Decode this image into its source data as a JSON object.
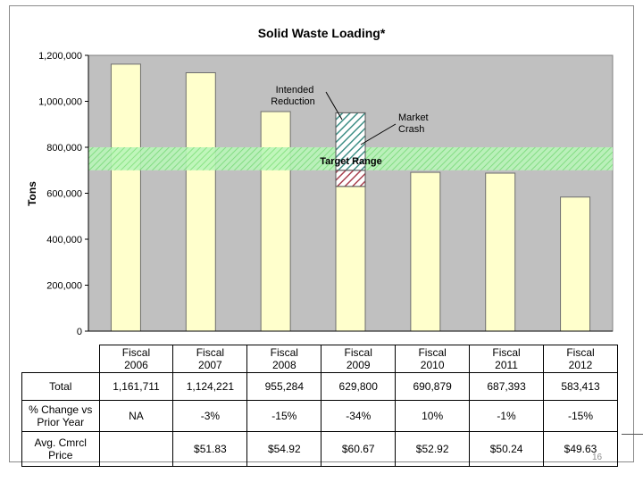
{
  "chart_data": {
    "type": "bar",
    "title": "Solid Waste Loading*",
    "ylabel": "Tons",
    "xlabel": "",
    "ylim": [
      0,
      1200000
    ],
    "yticks": [
      0,
      200000,
      400000,
      600000,
      800000,
      1000000,
      1200000
    ],
    "ytick_labels": [
      "0",
      "200,000",
      "400,000",
      "600,000",
      "800,000",
      "1,000,000",
      "1,200,000"
    ],
    "categories": [
      "Fiscal 2006",
      "Fiscal 2007",
      "Fiscal 2008",
      "Fiscal 2009",
      "Fiscal 2010",
      "Fiscal 2011",
      "Fiscal 2012"
    ],
    "values": [
      1161711,
      1124221,
      955284,
      629800,
      690879,
      687393,
      583413
    ],
    "stacked_overlays": [
      {
        "category": "Fiscal 2009",
        "label": "Intended Reduction",
        "from": 629800,
        "to": 700000,
        "pattern": "red-hatch"
      },
      {
        "category": "Fiscal 2009",
        "label": "Market Crash",
        "from": 700000,
        "to": 950000,
        "pattern": "teal-hatch"
      }
    ],
    "target_range": {
      "label": "Target Range",
      "from": 700000,
      "to": 800000
    },
    "annotations": [
      "Intended Reduction",
      "Market Crash",
      "Target Range"
    ],
    "grid": false,
    "colors": {
      "plot_bg": "#c0c0c0",
      "bar": "#ffffcc",
      "target": "#9cf09c",
      "hatch_teal": "#3f8f86",
      "hatch_red": "#a8404e"
    }
  },
  "table": {
    "columns": [
      {
        "line1": "Fiscal",
        "line2": "2006"
      },
      {
        "line1": "Fiscal",
        "line2": "2007"
      },
      {
        "line1": "Fiscal",
        "line2": "2008"
      },
      {
        "line1": "Fiscal",
        "line2": "2009"
      },
      {
        "line1": "Fiscal",
        "line2": "2010"
      },
      {
        "line1": "Fiscal",
        "line2": "2011"
      },
      {
        "line1": "Fiscal",
        "line2": "2012"
      }
    ],
    "rows": [
      {
        "label": "Total",
        "cells": [
          "1,161,711",
          "1,124,221",
          "955,284",
          "629,800",
          "690,879",
          "687,393",
          "583,413"
        ]
      },
      {
        "label": "% Change vs Prior Year",
        "cells": [
          "NA",
          "-3%",
          "-15%",
          "-34%",
          "10%",
          "-1%",
          "-15%"
        ]
      },
      {
        "label": "Avg. Cmrcl Price",
        "cells": [
          "",
          "$51.83",
          "$54.92",
          "$60.67",
          "$52.92",
          "$50.24",
          "$49.63"
        ]
      }
    ]
  },
  "page_number": "16"
}
